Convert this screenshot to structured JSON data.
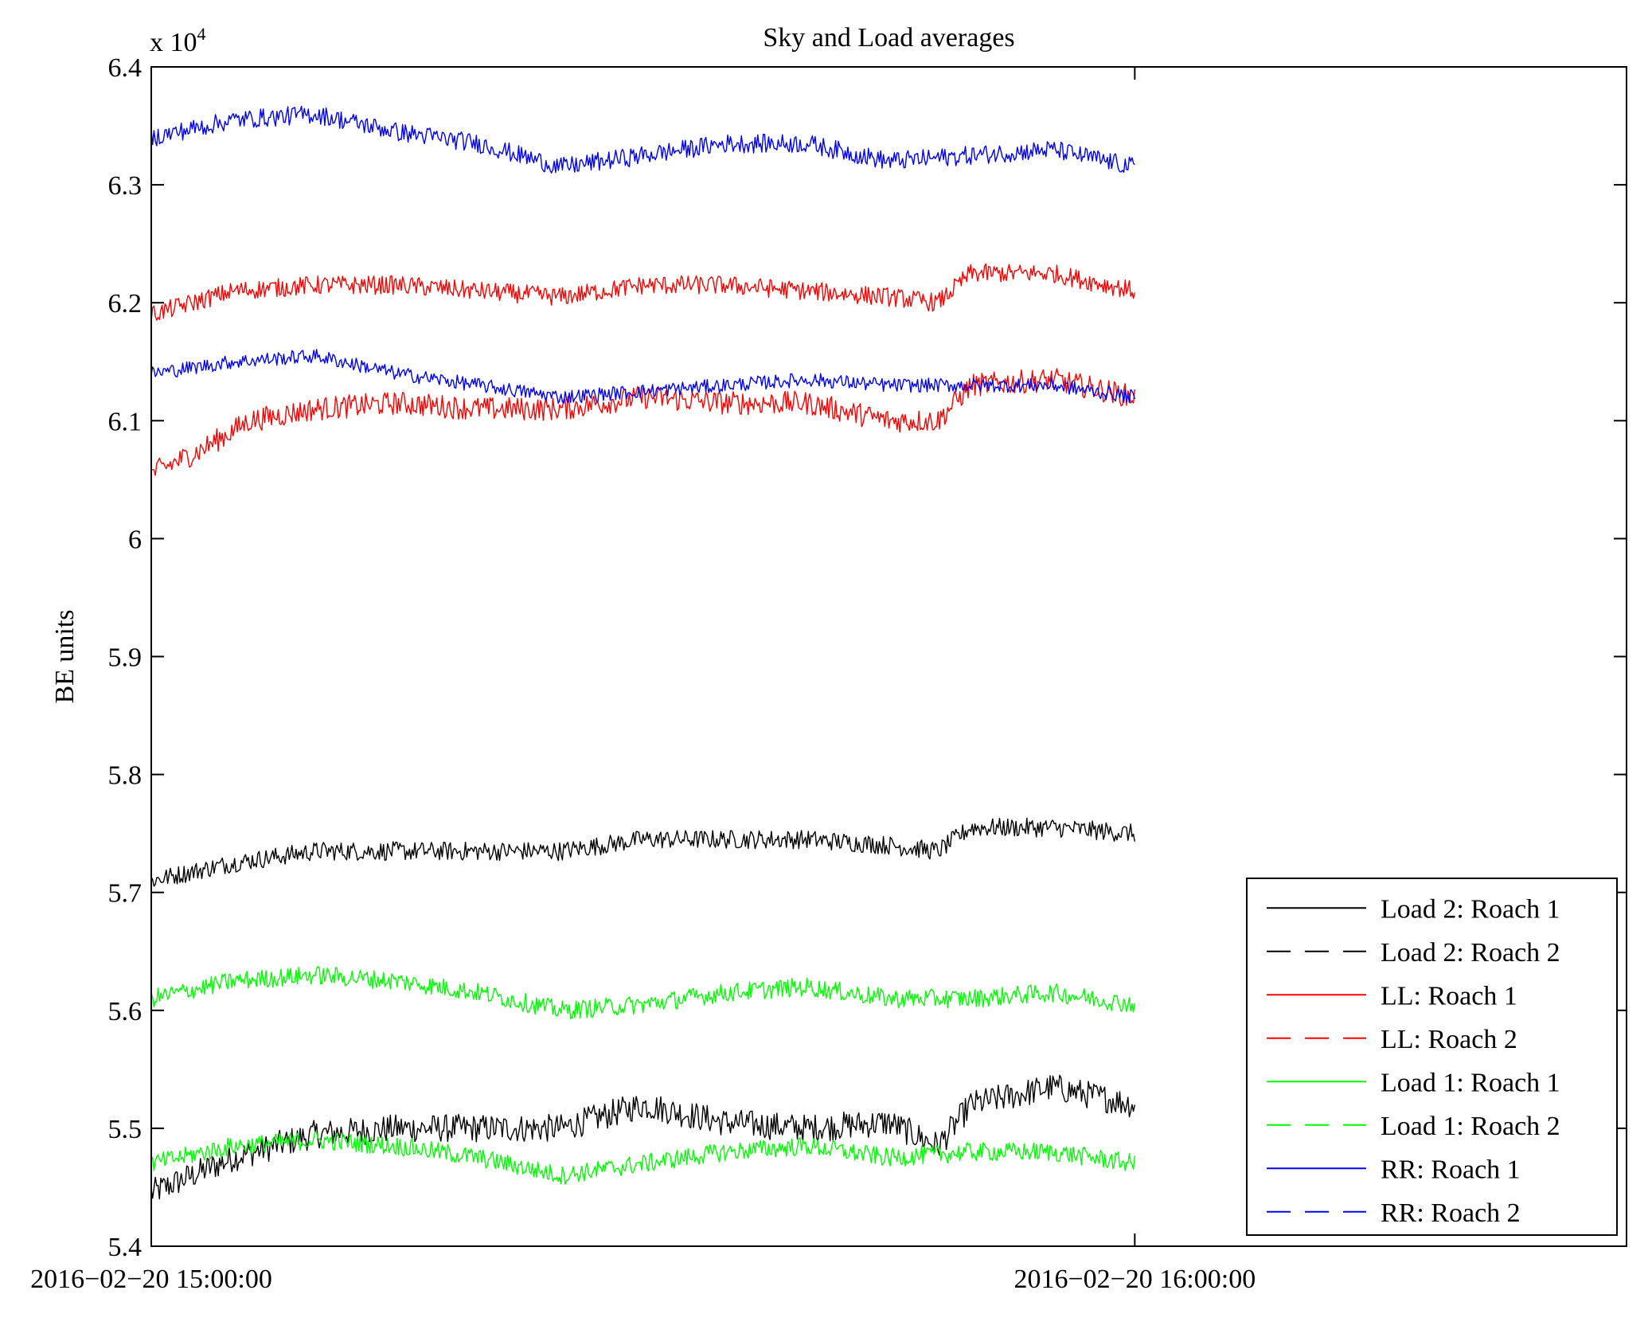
{
  "chart_data": {
    "type": "line",
    "title": "Sky and Load averages",
    "xlabel": "",
    "ylabel": "BE units",
    "y_multiplier": "x 10",
    "y_multiplier_exponent": "4",
    "xlim": [
      "2016-02-20 15:00:00",
      "2016-02-20 16:30:00"
    ],
    "ylim": [
      5.4,
      6.4
    ],
    "yticks": [
      "5.4",
      "5.5",
      "5.6",
      "5.7",
      "5.8",
      "5.9",
      "6",
      "6.1",
      "6.2",
      "6.3",
      "6.4"
    ],
    "xticks": [
      "2016-02-20 15:00:00",
      "2016-02-20 16:00:00"
    ],
    "grid": false,
    "legend_position": "bottom-right",
    "series": [
      {
        "name": "Load 2: Roach 1",
        "color": "#000000",
        "style": "solid",
        "noise": 0.012,
        "x": [
          "15:00",
          "15:05",
          "15:10",
          "15:15",
          "15:20",
          "15:25",
          "15:30",
          "15:35",
          "15:40",
          "15:45",
          "15:48",
          "15:50",
          "15:55",
          "16:00"
        ],
        "values": [
          5.445,
          5.475,
          5.495,
          5.5,
          5.5,
          5.5,
          5.52,
          5.505,
          5.5,
          5.505,
          5.485,
          5.52,
          5.535,
          5.52
        ]
      },
      {
        "name": "Load 2: Roach 2",
        "color": "#000000",
        "style": "dashed",
        "noise": 0.008,
        "x": [
          "15:00",
          "15:05",
          "15:10",
          "15:15",
          "15:20",
          "15:25",
          "15:30",
          "15:35",
          "15:40",
          "15:45",
          "15:48",
          "15:50",
          "15:55",
          "16:00"
        ],
        "values": [
          5.71,
          5.725,
          5.735,
          5.735,
          5.735,
          5.735,
          5.745,
          5.745,
          5.745,
          5.74,
          5.735,
          5.755,
          5.755,
          5.75
        ]
      },
      {
        "name": "LL: Roach 1",
        "color": "#ff0000",
        "style": "solid",
        "noise": 0.01,
        "x": [
          "15:00",
          "15:03",
          "15:06",
          "15:10",
          "15:15",
          "15:20",
          "15:25",
          "15:30",
          "15:35",
          "15:40",
          "15:45",
          "15:48",
          "15:50",
          "15:55",
          "16:00"
        ],
        "values": [
          6.055,
          6.075,
          6.1,
          6.11,
          6.115,
          6.11,
          6.11,
          6.12,
          6.115,
          6.115,
          6.1,
          6.1,
          6.13,
          6.135,
          6.12
        ]
      },
      {
        "name": "LL: Roach 2",
        "color": "#ff0000",
        "style": "dashed",
        "noise": 0.008,
        "x": [
          "15:00",
          "15:05",
          "15:10",
          "15:15",
          "15:20",
          "15:25",
          "15:30",
          "15:35",
          "15:40",
          "15:45",
          "15:48",
          "15:50",
          "15:55",
          "16:00"
        ],
        "values": [
          6.19,
          6.21,
          6.215,
          6.215,
          6.21,
          6.205,
          6.215,
          6.215,
          6.21,
          6.205,
          6.2,
          6.225,
          6.225,
          6.21
        ]
      },
      {
        "name": "Load 1: Roach 1",
        "color": "#00ff00",
        "style": "solid",
        "noise": 0.008,
        "x": [
          "15:00",
          "15:05",
          "15:10",
          "15:15",
          "15:20",
          "15:25",
          "15:30",
          "15:35",
          "15:40",
          "15:45",
          "15:50",
          "15:55",
          "16:00"
        ],
        "values": [
          5.47,
          5.485,
          5.49,
          5.485,
          5.475,
          5.46,
          5.47,
          5.48,
          5.485,
          5.475,
          5.48,
          5.48,
          5.47
        ]
      },
      {
        "name": "Load 1: Roach 2",
        "color": "#00ff00",
        "style": "dashed",
        "noise": 0.008,
        "x": [
          "15:00",
          "15:05",
          "15:10",
          "15:15",
          "15:20",
          "15:25",
          "15:30",
          "15:35",
          "15:40",
          "15:45",
          "15:50",
          "15:55",
          "16:00"
        ],
        "values": [
          5.61,
          5.625,
          5.63,
          5.625,
          5.615,
          5.6,
          5.605,
          5.615,
          5.62,
          5.61,
          5.61,
          5.615,
          5.605
        ]
      },
      {
        "name": "RR: Roach 1",
        "color": "#0000ff",
        "style": "solid",
        "noise": 0.006,
        "x": [
          "15:00",
          "15:05",
          "15:10",
          "15:15",
          "15:20",
          "15:25",
          "15:30",
          "15:35",
          "15:40",
          "15:45",
          "15:50",
          "15:55",
          "16:00"
        ],
        "values": [
          6.14,
          6.15,
          6.155,
          6.14,
          6.13,
          6.12,
          6.125,
          6.13,
          6.135,
          6.13,
          6.13,
          6.13,
          6.12
        ]
      },
      {
        "name": "RR: Roach 2",
        "color": "#0000ff",
        "style": "dashed",
        "noise": 0.008,
        "x": [
          "15:00",
          "15:05",
          "15:10",
          "15:15",
          "15:20",
          "15:25",
          "15:30",
          "15:35",
          "15:40",
          "15:45",
          "15:50",
          "15:55",
          "16:00"
        ],
        "values": [
          6.34,
          6.355,
          6.36,
          6.345,
          6.335,
          6.315,
          6.325,
          6.335,
          6.335,
          6.32,
          6.325,
          6.33,
          6.315
        ]
      }
    ]
  }
}
